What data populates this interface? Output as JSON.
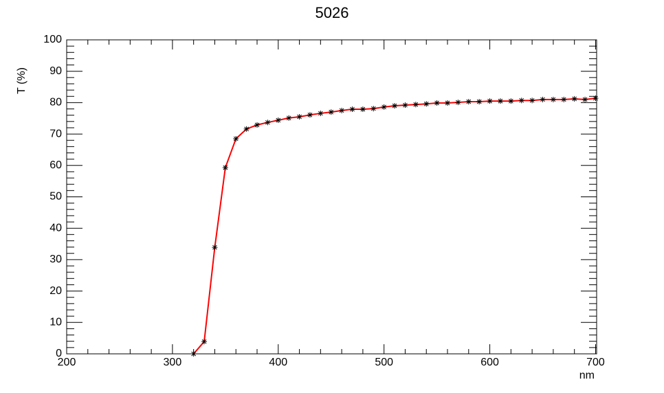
{
  "chart_data": {
    "type": "line",
    "title": "5026",
    "x_label": "nm",
    "y_label": "T (%)",
    "x": [
      320,
      330,
      340,
      350,
      360,
      370,
      380,
      390,
      400,
      410,
      420,
      430,
      440,
      450,
      460,
      470,
      480,
      490,
      500,
      510,
      520,
      530,
      540,
      550,
      560,
      570,
      580,
      590,
      600,
      610,
      620,
      630,
      640,
      650,
      660,
      670,
      680,
      690,
      700
    ],
    "series": [
      {
        "color": "#ff0000",
        "marker_color": "#000000",
        "values": [
          0,
          3.9,
          33.9,
          59.3,
          68.5,
          71.6,
          72.9,
          73.7,
          74.4,
          75.1,
          75.5,
          76.1,
          76.6,
          77.0,
          77.5,
          77.9,
          77.9,
          78.1,
          78.6,
          79.0,
          79.2,
          79.4,
          79.6,
          79.9,
          79.9,
          80.1,
          80.3,
          80.3,
          80.5,
          80.5,
          80.5,
          80.7,
          80.7,
          81.0,
          81.0,
          81.0,
          81.2,
          81.0,
          81.4
        ]
      }
    ],
    "xlim": [
      200,
      701
    ],
    "ylim": [
      0,
      100
    ],
    "xticks": [
      200,
      300,
      400,
      500,
      600,
      700
    ],
    "yticks": [
      0,
      10,
      20,
      30,
      40,
      50,
      60,
      70,
      80,
      90,
      100
    ]
  }
}
